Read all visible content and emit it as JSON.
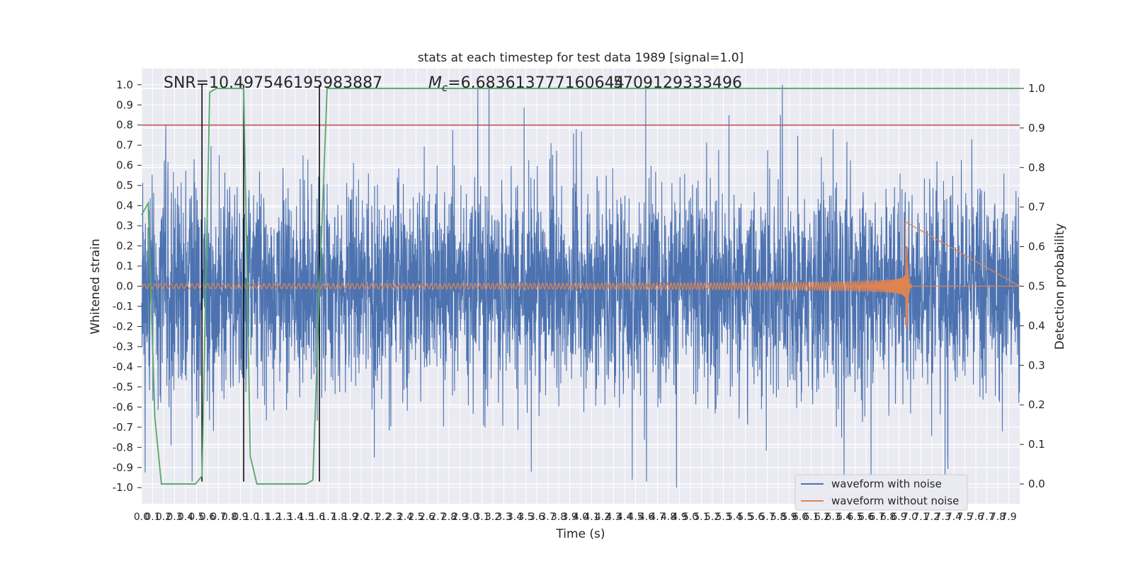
{
  "chart_data": {
    "type": "line",
    "title": "stats at each timestep for test data 1989 [signal=1.0]",
    "xlabel": "Time (s)",
    "ylabel": "Whitened strain",
    "y2label": "Detection probability",
    "xlim": [
      0.0,
      8.0
    ],
    "ylim": [
      -1.08,
      1.08
    ],
    "y2lim": [
      -0.05,
      1.05
    ],
    "xticks": [
      "0.0",
      "0.1",
      "0.2",
      "0.3",
      "0.4",
      "0.5",
      "0.6",
      "0.7",
      "0.8",
      "0.9",
      "1.0",
      "1.1",
      "1.2",
      "1.3",
      "1.4",
      "1.5",
      "1.6",
      "1.7",
      "1.8",
      "1.9",
      "2.0",
      "2.1",
      "2.2",
      "2.3",
      "2.4",
      "2.5",
      "2.6",
      "2.7",
      "2.8",
      "2.9",
      "3.0",
      "3.1",
      "3.2",
      "3.3",
      "3.4",
      "3.5",
      "3.6",
      "3.7",
      "3.8",
      "3.9",
      "4.0",
      "4.1",
      "4.2",
      "4.3",
      "4.4",
      "4.5",
      "4.6",
      "4.7",
      "4.8",
      "4.9",
      "5.0",
      "5.1",
      "5.2",
      "5.3",
      "5.4",
      "5.5",
      "5.6",
      "5.7",
      "5.8",
      "5.9",
      "6.0",
      "6.1",
      "6.2",
      "6.3",
      "6.4",
      "6.5",
      "6.6",
      "6.7",
      "6.8",
      "6.9",
      "7.0",
      "7.1",
      "7.2",
      "7.3",
      "7.4",
      "7.5",
      "7.6",
      "7.7",
      "7.8",
      "7.9"
    ],
    "yticks": [
      "1.0",
      "0.9",
      "0.8",
      "0.7",
      "0.6",
      "0.5",
      "0.4",
      "0.3",
      "0.2",
      "0.1",
      "0.0",
      "-0.1",
      "-0.2",
      "-0.3",
      "-0.4",
      "-0.5",
      "-0.6",
      "-0.7",
      "-0.8",
      "-0.9",
      "-1.0"
    ],
    "y2ticks": [
      "1.0",
      "0.9",
      "0.8",
      "0.7",
      "0.6",
      "0.5",
      "0.4",
      "0.3",
      "0.2",
      "0.1",
      "0.0"
    ],
    "annotations": {
      "snr": "SNR=10.497546195983887",
      "mc_prefix": "M",
      "mc_sub": "c",
      "mc_value": "=6.683613777160644",
      "overlap": "5709129333496"
    },
    "threshold": 0.8,
    "vlines": [
      0.55,
      0.93,
      1.62
    ],
    "series": [
      {
        "name": "waveform with noise",
        "color": "#4c72b0",
        "kind": "noise",
        "amplitude": 0.25,
        "peaks": [
          [
            4.6,
            1.0
          ],
          [
            4.6,
            -0.97
          ],
          [
            0.22,
            0.8
          ],
          [
            3.96,
            0.78
          ],
          [
            6.3,
            0.78
          ],
          [
            3.73,
            0.71
          ],
          [
            4.47,
            -0.96
          ],
          [
            0.46,
            -0.97
          ],
          [
            7.32,
            -0.94
          ],
          [
            3.55,
            -0.92
          ],
          [
            2.12,
            -0.85
          ]
        ]
      },
      {
        "name": "waveform without noise",
        "color": "#dd8452",
        "kind": "chirp",
        "t_merge": 6.97,
        "peak": 0.32,
        "trough": -0.21
      },
      {
        "name": "detection probability",
        "color": "#55a868",
        "axis": "right",
        "x": [
          0.0,
          0.06,
          0.12,
          0.18,
          0.49,
          0.55,
          0.62,
          0.68,
          0.93,
          0.99,
          1.05,
          1.5,
          1.56,
          1.62,
          1.69,
          8.0
        ],
        "y": [
          0.68,
          0.71,
          0.17,
          0.0,
          0.0,
          0.02,
          0.99,
          1.0,
          1.0,
          0.07,
          0.0,
          0.0,
          0.01,
          0.49,
          1.0,
          1.0
        ]
      }
    ],
    "threshold_color": "#c44e52",
    "legend": {
      "placement": "lower-right",
      "items": [
        "waveform with noise",
        "waveform without noise"
      ]
    },
    "grid": true,
    "background": "#eaeaf2"
  }
}
